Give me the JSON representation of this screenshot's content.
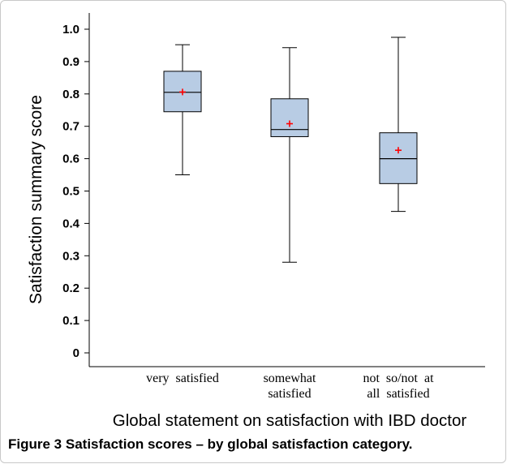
{
  "caption": {
    "label": "Figure 3",
    "title": "Satisfaction scores – by global satisfaction category."
  },
  "chart_data": {
    "type": "box",
    "title": "",
    "xlabel": "Global statement on satisfaction with IBD doctor",
    "ylabel": "Satisfaction summary score",
    "ylim": [
      0,
      1.0
    ],
    "yticks": [
      "0",
      "0.1",
      "0.2",
      "0.3",
      "0.4",
      "0.5",
      "0.6",
      "0.7",
      "0.8",
      "0.9",
      "1.0"
    ],
    "grid": false,
    "box_color": "#b8cce4",
    "mean_marker_color": "#ff0000",
    "categories": [
      {
        "lines": [
          "very  satisfied"
        ],
        "min": 0.55,
        "q1": 0.745,
        "median": 0.805,
        "q3": 0.87,
        "max": 0.952,
        "mean": 0.806
      },
      {
        "lines": [
          "somewhat",
          "satisfied"
        ],
        "min": 0.28,
        "q1": 0.668,
        "median": 0.69,
        "q3": 0.785,
        "max": 0.943,
        "mean": 0.708
      },
      {
        "lines": [
          "not  so/not  at",
          "all  satisfied"
        ],
        "min": 0.437,
        "q1": 0.523,
        "median": 0.6,
        "q3": 0.68,
        "max": 0.975,
        "mean": 0.626
      }
    ]
  }
}
